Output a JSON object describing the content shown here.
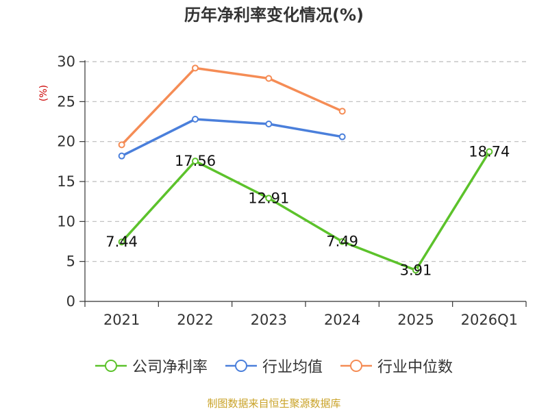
{
  "chart_data": {
    "type": "line",
    "title": "历年净利率变化情况(%)",
    "ylabel": "(%)",
    "categories": [
      "2021",
      "2022",
      "2023",
      "2024",
      "2025",
      "2026Q1"
    ],
    "ylim": [
      0,
      30
    ],
    "yticks": [
      0,
      5,
      10,
      15,
      20,
      25,
      30
    ],
    "grid": true,
    "legend_position": "bottom",
    "series": [
      {
        "name": "公司净利率",
        "color": "#5cc22b",
        "values": [
          7.44,
          17.56,
          12.91,
          7.49,
          3.91,
          18.74
        ],
        "labels": [
          "7.44",
          "17.56",
          "12.91",
          "7.49",
          "3.91",
          "18.74"
        ]
      },
      {
        "name": "行业均值",
        "color": "#4a7fdb",
        "values": [
          18.2,
          22.8,
          22.2,
          20.6,
          null,
          null
        ]
      },
      {
        "name": "行业中位数",
        "color": "#f58c55",
        "values": [
          19.6,
          29.2,
          27.9,
          23.8,
          null,
          null
        ]
      }
    ]
  },
  "source": "制图数据来自恒生聚源数据库"
}
